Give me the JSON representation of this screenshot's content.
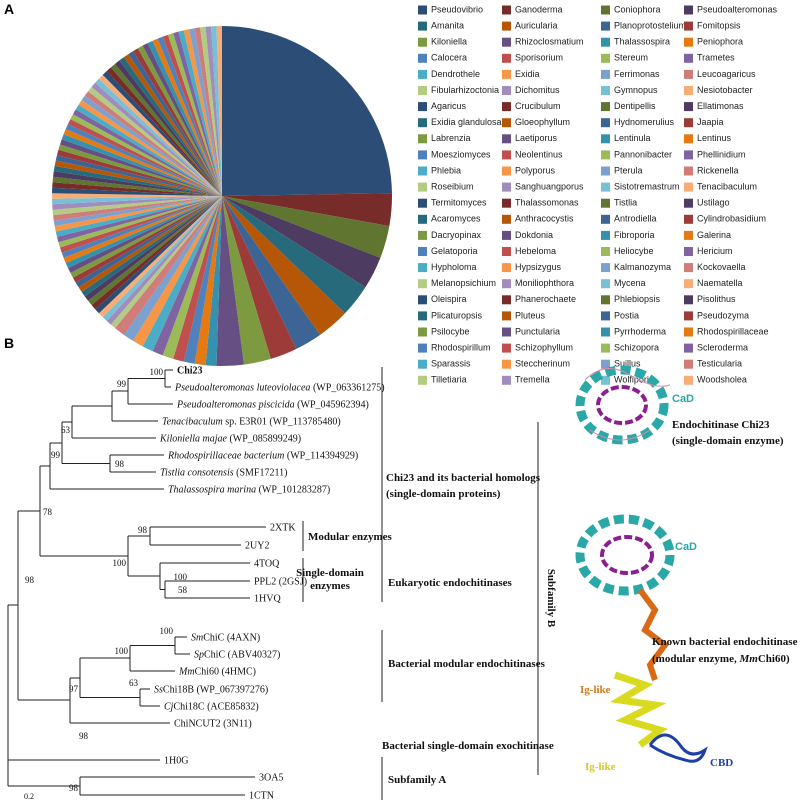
{
  "chart_data": {
    "type": "pie",
    "categories": [
      "Pseudovibrio",
      "Ganoderma",
      "Coniophora",
      "Pseudoalteromonas",
      "Amanita",
      "Auricularia",
      "Planoprotostelium",
      "Fomitopsis",
      "Kiloniella",
      "Rhizoclosmatium",
      "Thalassospira",
      "Peniophora",
      "Calocera",
      "Sporisorium",
      "Stereum",
      "Trametes",
      "Dendrothele",
      "Exidia",
      "Ferrimonas",
      "Leucoagaricus",
      "Fibularhizoctonia",
      "Dichomitus",
      "Gymnopus",
      "Nesiotobacter",
      "Agaricus",
      "Crucibulum",
      "Dentipellis",
      "Ellatimonas",
      "Exidia glandulosa",
      "Gloeophyllum",
      "Hydnomerulius",
      "Jaapia",
      "Labrenzia",
      "Laetiporus",
      "Lentinula",
      "Lentinus",
      "Moesziomyces",
      "Neolentinus",
      "Pannonibacter",
      "Phellinidium",
      "Phlebia",
      "Polyporus",
      "Pterula",
      "Rickenella",
      "Roseibium",
      "Sanghuangporus",
      "Sistotremastrum",
      "Tenacibaculum",
      "Termitomyces",
      "Thalassomonas",
      "Tistlia",
      "Ustilago",
      "Acaromyces",
      "Anthracocystis",
      "Antrodiella",
      "Cylindrobasidium",
      "Dacryopinax",
      "Dokdonia",
      "Fibroporia",
      "Galerina",
      "Gelatoporia",
      "Hebeloma",
      "Heliocybe",
      "Hericium",
      "Hypholoma",
      "Hypsizygus",
      "Kalmanozyma",
      "Kockovaella",
      "Melanopsichium",
      "Moniliophthora",
      "Mycena",
      "Naematella",
      "Oleispira",
      "Phanerochaete",
      "Phlebiopsis",
      "Pisolithus",
      "Plicaturopsis",
      "Pluteus",
      "Postia",
      "Pseudozyma",
      "Psilocybe",
      "Punctularia",
      "Pyrrhoderma",
      "Rhodospirillaceae",
      "Rhodospirillum",
      "Schizophyllum",
      "Schizopora",
      "Scleroderma",
      "Sparassis",
      "Steccherinum",
      "Suillus",
      "Testicularia",
      "Tilletiaria",
      "Tremella",
      "Wolfiporia",
      "Woodsholea"
    ],
    "values": [
      24,
      3,
      3,
      3,
      3,
      3,
      2.5,
      2.5,
      2.5,
      2.5,
      1,
      1,
      1,
      1,
      1,
      1,
      1,
      1,
      1,
      1,
      0.5,
      0.5,
      0.5,
      0.5,
      0.5,
      0.5,
      0.5,
      0.5,
      0.5,
      0.5,
      0.5,
      0.5,
      0.5,
      0.5,
      0.5,
      0.5,
      0.5,
      0.5,
      0.5,
      0.5,
      0.5,
      0.5,
      0.5,
      0.5,
      0.5,
      0.5,
      0.5,
      0.5,
      0.5,
      0.5,
      0.5,
      0.5,
      0.5,
      0.5,
      0.5,
      0.5,
      0.5,
      0.5,
      0.5,
      0.5,
      0.5,
      0.5,
      0.5,
      0.5,
      0.5,
      0.5,
      0.5,
      0.5,
      0.5,
      0.5,
      0.5,
      0.5,
      0.5,
      0.5,
      0.5,
      0.5,
      0.5,
      0.5,
      0.5,
      0.5,
      0.5,
      0.5,
      0.5,
      0.5,
      0.5,
      0.5,
      0.5,
      0.5,
      0.5,
      0.5,
      0.5,
      0.5,
      0.5,
      0.5,
      0.5,
      0.5
    ],
    "palette": [
      "#2c4d75",
      "#772c2a",
      "#5f7530",
      "#4d3b62",
      "#276a7c",
      "#b65708",
      "#3c6494",
      "#9c3b38",
      "#7d9a40",
      "#664f83",
      "#3591ad",
      "#e57a12",
      "#4f81bd",
      "#c0504d",
      "#9bbb59",
      "#8064a2",
      "#4bacc6",
      "#f79646",
      "#7ca0d0",
      "#d07c79",
      "#b3cc81",
      "#a08cbd",
      "#78c0d6",
      "#f9ad76"
    ]
  },
  "panel_labels": [
    "A",
    "B"
  ],
  "tree": {
    "leaves": [
      {
        "bold": "Chi23"
      },
      {
        "italic": "Pseudoalteromonas luteoviolacea",
        "text": " (WP_063361275)"
      },
      {
        "italic": "Pseudoalteromonas piscicida",
        "text": " (WP_045962394)"
      },
      {
        "italic": "Tenacibaculum",
        "text": " sp. E3R01 (WP_113785480)"
      },
      {
        "italic": "Kiloniella majae",
        "text": " (WP_085899249)"
      },
      {
        "italic": "Rhodospirillaceae bacterium",
        "text": " (WP_114394929)"
      },
      {
        "italic": "Tistlia consotensis",
        "text": " (SMF17211)"
      },
      {
        "italic": "Thalassospira marina",
        "text": " (WP_101283287)"
      },
      {
        "text": "2XTK"
      },
      {
        "text": "2UY2"
      },
      {
        "text": "4TOQ"
      },
      {
        "text": "PPL2 (2GSJ)"
      },
      {
        "text": "1HVQ"
      },
      {
        "italic": "Sm",
        "text": "ChiC (4AXN)"
      },
      {
        "italic": "Sp",
        "text": "ChiC (ABV40327)"
      },
      {
        "italic": "Mm",
        "text": "Chi60 (4HMC)"
      },
      {
        "italic": "Ss",
        "text": "Chi18B (WP_067397276)"
      },
      {
        "italic": "Cj",
        "text": "Chi18C (ACE85832)"
      },
      {
        "text": "ChiNCUT2 (3N11)"
      },
      {
        "text": "1H0G"
      },
      {
        "text": "3OA5"
      },
      {
        "text": "1CTN"
      }
    ],
    "bootstrap": [
      100,
      99,
      63,
      99,
      98,
      78,
      98,
      100,
      100,
      58,
      100,
      100,
      63,
      97,
      98,
      98,
      98
    ],
    "clades": [
      [
        "Chi23 and its bacterial homologs",
        "(single-domain proteins)"
      ],
      [
        "Modular enzymes"
      ],
      [
        "Single-domain",
        "enzymes"
      ],
      [
        "Eukaryotic endochitinases"
      ],
      [
        "Bacterial modular endochitinases"
      ],
      [
        "Bacterial single-domain exochitinase"
      ],
      [
        "Subfamily A"
      ]
    ],
    "subfamily_b": "Subfamily B",
    "scale_label": "0.2"
  },
  "structures": {
    "cad_1": "CaD",
    "chi23_title": "Endochitinase Chi23",
    "chi23_sub": "(single-domain enzyme)",
    "cad_2": "CaD",
    "known_title": "Known bacterial endochitinase",
    "known_sub": {
      "pre": "(modular enzyme, ",
      "italic": "Mm",
      "post": "Chi60)"
    },
    "iglike_1": "Ig-like",
    "iglike_2": "Ig-like",
    "cbd": "CBD"
  }
}
